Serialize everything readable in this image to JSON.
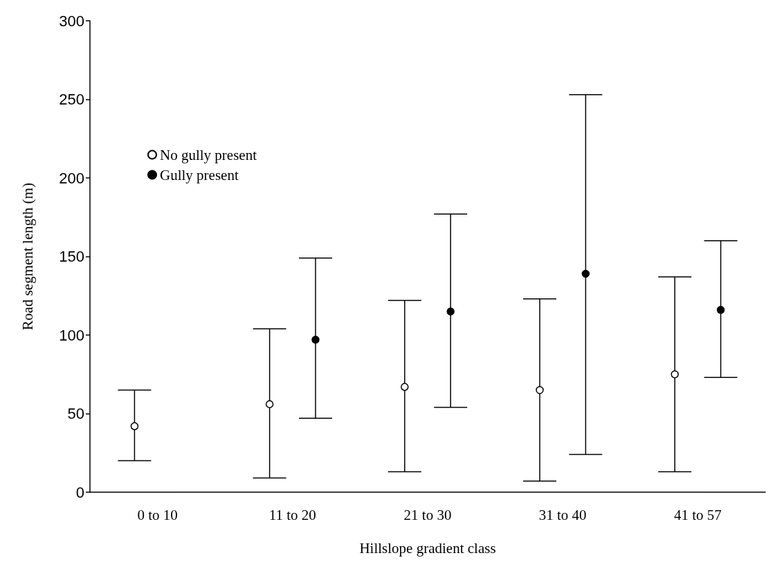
{
  "chart_data": {
    "type": "scatter",
    "xlabel": "Hillslope gradient class",
    "ylabel": "Road segment length (m)",
    "categories": [
      "0 to 10",
      "11 to 20",
      "21 to 30",
      "31 to 40",
      "41 to 57"
    ],
    "ylim": [
      0,
      300
    ],
    "yticks": [
      0,
      50,
      100,
      150,
      200,
      250,
      300
    ],
    "legend": "top left",
    "marker": "circle",
    "series": [
      {
        "name": "No gully present",
        "color": "#ffffff",
        "values": [
          42,
          56,
          67,
          65,
          75
        ],
        "errors": [
          [
            20,
            65
          ],
          [
            9,
            104
          ],
          [
            13,
            122
          ],
          [
            7,
            123
          ],
          [
            13,
            137
          ]
        ]
      },
      {
        "name": "Gully present",
        "color": "#000000",
        "values": [
          null,
          97,
          115,
          139,
          116
        ],
        "errors": [
          null,
          [
            47,
            149
          ],
          [
            54,
            177
          ],
          [
            24,
            253
          ],
          [
            73,
            160
          ]
        ]
      }
    ]
  }
}
